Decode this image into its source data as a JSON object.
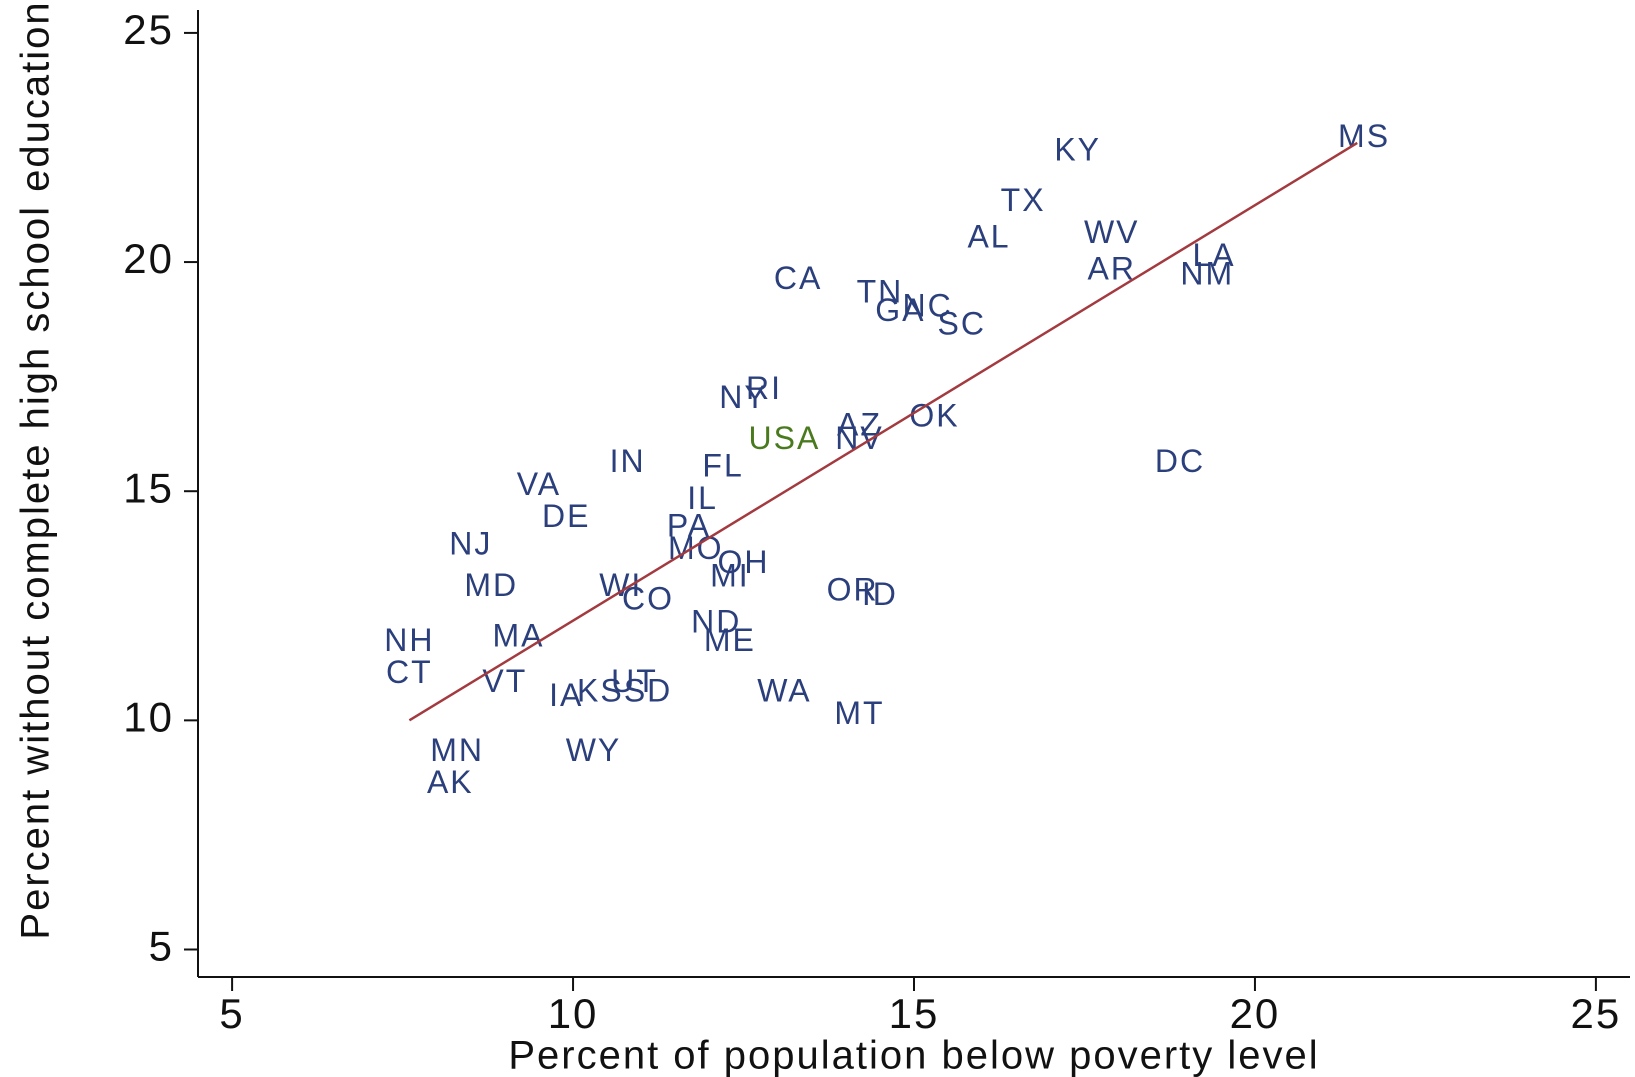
{
  "chart_data": {
    "type": "scatter",
    "x_label": "Percent of population below poverty level",
    "y_label": "Percent without complete high school education",
    "xlim": [
      4.5,
      25.5
    ],
    "ylim": [
      4.4,
      25.5
    ],
    "xticks": [
      5,
      10,
      15,
      20,
      25
    ],
    "yticks": [
      5,
      10,
      15,
      20,
      25
    ],
    "color": "#2b3f7c",
    "points": [
      {
        "label": "MS",
        "x": 21.6,
        "y": 22.7
      },
      {
        "label": "KY",
        "x": 17.4,
        "y": 22.4
      },
      {
        "label": "TX",
        "x": 16.6,
        "y": 21.3
      },
      {
        "label": "AL",
        "x": 16.1,
        "y": 20.5
      },
      {
        "label": "WV",
        "x": 17.9,
        "y": 20.6
      },
      {
        "label": "AR",
        "x": 17.9,
        "y": 19.8
      },
      {
        "label": "LA",
        "x": 19.4,
        "y": 20.1
      },
      {
        "label": "NM",
        "x": 19.3,
        "y": 19.7
      },
      {
        "label": "CA",
        "x": 13.3,
        "y": 19.6
      },
      {
        "label": "TN",
        "x": 14.5,
        "y": 19.3
      },
      {
        "label": "GA",
        "x": 14.8,
        "y": 18.9
      },
      {
        "label": "NC",
        "x": 15.2,
        "y": 19.0
      },
      {
        "label": "SC",
        "x": 15.7,
        "y": 18.6
      },
      {
        "label": "RI",
        "x": 12.8,
        "y": 17.2
      },
      {
        "label": "NY",
        "x": 12.5,
        "y": 17.0
      },
      {
        "label": "AZ",
        "x": 14.2,
        "y": 16.4
      },
      {
        "label": "NV",
        "x": 14.2,
        "y": 16.1
      },
      {
        "label": "OK",
        "x": 15.3,
        "y": 16.6
      },
      {
        "label": "DC",
        "x": 18.9,
        "y": 15.6
      },
      {
        "label": "IN",
        "x": 10.8,
        "y": 15.6
      },
      {
        "label": "FL",
        "x": 12.2,
        "y": 15.5
      },
      {
        "label": "IL",
        "x": 11.9,
        "y": 14.8
      },
      {
        "label": "VA",
        "x": 9.5,
        "y": 15.1
      },
      {
        "label": "DE",
        "x": 9.9,
        "y": 14.4
      },
      {
        "label": "NJ",
        "x": 8.5,
        "y": 13.8
      },
      {
        "label": "PA",
        "x": 11.7,
        "y": 14.2
      },
      {
        "label": "MO",
        "x": 11.8,
        "y": 13.7
      },
      {
        "label": "OH",
        "x": 12.5,
        "y": 13.4
      },
      {
        "label": "MI",
        "x": 12.3,
        "y": 13.1
      },
      {
        "label": "MD",
        "x": 8.8,
        "y": 12.9
      },
      {
        "label": "WI",
        "x": 10.7,
        "y": 12.9
      },
      {
        "label": "CO",
        "x": 11.1,
        "y": 12.6
      },
      {
        "label": "OR",
        "x": 14.1,
        "y": 12.8
      },
      {
        "label": "ID",
        "x": 14.5,
        "y": 12.7
      },
      {
        "label": "ND",
        "x": 12.1,
        "y": 12.1
      },
      {
        "label": "ME",
        "x": 12.3,
        "y": 11.7
      },
      {
        "label": "MA",
        "x": 9.2,
        "y": 11.8
      },
      {
        "label": "NH",
        "x": 7.6,
        "y": 11.7
      },
      {
        "label": "CT",
        "x": 7.6,
        "y": 11.0
      },
      {
        "label": "VT",
        "x": 9.0,
        "y": 10.8
      },
      {
        "label": "UT",
        "x": 10.9,
        "y": 10.8
      },
      {
        "label": "IA",
        "x": 9.9,
        "y": 10.5
      },
      {
        "label": "KS",
        "x": 10.4,
        "y": 10.6
      },
      {
        "label": "SD",
        "x": 11.1,
        "y": 10.6
      },
      {
        "label": "WA",
        "x": 13.1,
        "y": 10.6
      },
      {
        "label": "MT",
        "x": 14.2,
        "y": 10.1
      },
      {
        "label": "MN",
        "x": 8.3,
        "y": 9.3
      },
      {
        "label": "WY",
        "x": 10.3,
        "y": 9.3
      },
      {
        "label": "AK",
        "x": 8.2,
        "y": 8.6
      }
    ],
    "reference": {
      "label": "USA",
      "x": 13.1,
      "y": 16.1,
      "color": "#4a7a1e"
    },
    "fit": {
      "x": [
        7.6,
        21.5
      ],
      "y": [
        10.0,
        22.6
      ],
      "color": "#a33a3f"
    }
  }
}
